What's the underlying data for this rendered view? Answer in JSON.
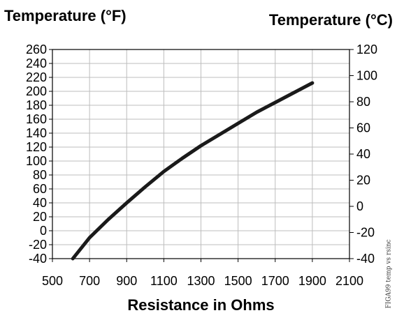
{
  "chart_data": {
    "type": "line",
    "left_axis_title": "Temperature (°F)",
    "right_axis_title": "Temperature (°C)",
    "xlabel": "Resistance in Ohms",
    "xlim": [
      500,
      2100
    ],
    "x_ticks": [
      500,
      700,
      900,
      1100,
      1300,
      1500,
      1700,
      1900,
      2100
    ],
    "ylim_f": [
      -40,
      260
    ],
    "y_ticks_f": [
      -40,
      -20,
      0,
      20,
      40,
      60,
      80,
      100,
      120,
      140,
      160,
      180,
      200,
      220,
      240,
      260
    ],
    "ylim_c": [
      -40,
      120
    ],
    "y_ticks_c": [
      -40,
      -20,
      0,
      20,
      40,
      60,
      80,
      100,
      120
    ],
    "grid": true,
    "series": [
      {
        "x": [
          610,
          700,
          800,
          900,
          1000,
          1100,
          1200,
          1300,
          1400,
          1500,
          1600,
          1700,
          1800,
          1900
        ],
        "y": [
          -40,
          -10,
          16,
          40,
          63,
          85,
          104,
          122,
          138,
          154,
          170,
          184,
          198,
          212
        ],
        "color": "#1a1a1a"
      }
    ],
    "figure_tag": "FIGA99 temp vs rsinc"
  }
}
